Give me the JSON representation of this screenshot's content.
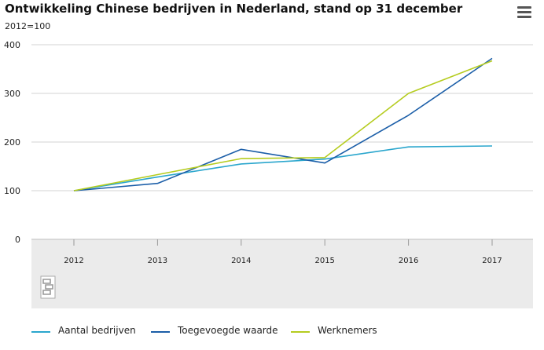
{
  "chart_data": {
    "type": "line",
    "title": "Ontwikkeling Chinese bedrijven in Nederland, stand op 31 december",
    "subtitle": "2012=100",
    "xlabel": "",
    "ylabel": "",
    "categories": [
      "2012",
      "2013",
      "2014",
      "2015",
      "2016",
      "2017"
    ],
    "ylim": [
      0,
      400
    ],
    "yticks": [
      0,
      100,
      200,
      300,
      400
    ],
    "grid": true,
    "legend_position": "bottom",
    "series": [
      {
        "name": "Aantal bedrijven",
        "color": "#2aa6cd",
        "values": [
          100,
          128,
          155,
          165,
          190,
          192
        ]
      },
      {
        "name": "Toegevoegde waarde",
        "color": "#1b5ea8",
        "values": [
          100,
          115,
          185,
          157,
          255,
          372
        ]
      },
      {
        "name": "Werknemers",
        "color": "#b5cc1f",
        "values": [
          100,
          133,
          166,
          168,
          300,
          367
        ]
      }
    ]
  },
  "toolbar": {
    "menu_icon": "hamburger-menu-icon"
  },
  "branding": {
    "logo": "cbs-logo"
  }
}
